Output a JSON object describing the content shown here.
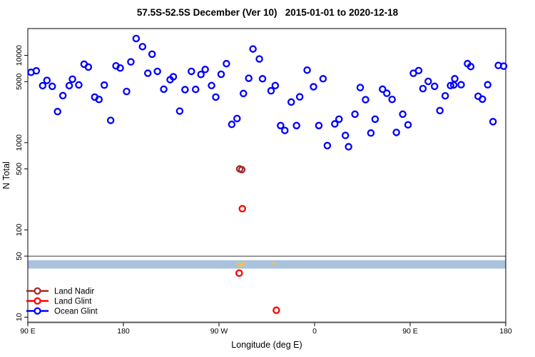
{
  "title": "57.5S-52.5S December (Ver 10)   2015-01-01 to 2020-12-18",
  "chart_data": {
    "type": "scatter",
    "title": "57.5S-52.5S December (Ver 10)   2015-01-01 to 2020-12-18",
    "xlabel": "Longitude (deg E)",
    "ylabel": "N Total",
    "x_axis": {
      "min": 90,
      "max": 540,
      "ticks": [
        {
          "value": 90,
          "label": "90 E"
        },
        {
          "value": 180,
          "label": "180"
        },
        {
          "value": 270,
          "label": "90 W"
        },
        {
          "value": 360,
          "label": "0"
        },
        {
          "value": 450,
          "label": "90 E"
        },
        {
          "value": 540,
          "label": "180"
        }
      ]
    },
    "y_axis": {
      "scale": "log10",
      "min": 8.8,
      "max": 20300,
      "ticks": [
        {
          "value": 10000,
          "label": "10000"
        },
        {
          "value": 5000,
          "label": "5000"
        },
        {
          "value": 1000,
          "label": "1000"
        },
        {
          "value": 500,
          "label": "500"
        },
        {
          "value": 100,
          "label": "100"
        },
        {
          "value": 50,
          "label": "50"
        },
        {
          "value": 10,
          "label": "10"
        }
      ]
    },
    "reference_line": {
      "y": 50,
      "color": "#808080"
    },
    "reference_band": {
      "y_min": 36,
      "y_max": 45,
      "color": "#A9C2DE"
    },
    "stray_marks": {
      "color": "#E3C565",
      "points": [
        [
          288.5,
          41
        ],
        [
          290,
          38.5
        ],
        [
          292,
          40
        ],
        [
          293.5,
          41.5
        ],
        [
          322,
          41
        ]
      ]
    },
    "legend": {
      "position": "bottom-left",
      "items": [
        "Land Nadir",
        "Land Glint",
        "Ocean Glint"
      ]
    },
    "series": [
      {
        "name": "Land Nadir",
        "color": "#A52A2A",
        "points": [
          [
            289.5,
            500
          ],
          [
            291.5,
            490
          ]
        ]
      },
      {
        "name": "Land Glint",
        "color": "#FF0000",
        "points": [
          [
            292,
            175
          ],
          [
            289,
            32
          ],
          [
            324,
            12
          ]
        ]
      },
      {
        "name": "Ocean Glint",
        "color": "#0000FF",
        "points": [
          [
            93,
            6400
          ],
          [
            98,
            6660
          ],
          [
            104,
            4500
          ],
          [
            108,
            5170
          ],
          [
            113,
            4420
          ],
          [
            118,
            2270
          ],
          [
            123,
            3460
          ],
          [
            129,
            4500
          ],
          [
            132,
            5340
          ],
          [
            138,
            4590
          ],
          [
            143,
            7930
          ],
          [
            147,
            7350
          ],
          [
            153,
            3330
          ],
          [
            157,
            3130
          ],
          [
            162,
            4570
          ],
          [
            168,
            1800
          ],
          [
            173,
            7590
          ],
          [
            177,
            7170
          ],
          [
            183,
            3860
          ],
          [
            187,
            8430
          ],
          [
            192,
            15600
          ],
          [
            198,
            12600
          ],
          [
            203,
            6250
          ],
          [
            207,
            10330
          ],
          [
            212,
            6560
          ],
          [
            218,
            4100
          ],
          [
            224,
            5270
          ],
          [
            227,
            5690
          ],
          [
            233,
            2300
          ],
          [
            238,
            4050
          ],
          [
            244,
            6560
          ],
          [
            248,
            4080
          ],
          [
            253,
            6050
          ],
          [
            257,
            6900
          ],
          [
            263,
            4510
          ],
          [
            267,
            3330
          ],
          [
            272,
            6080
          ],
          [
            277,
            8040
          ],
          [
            282,
            1620
          ],
          [
            287,
            1890
          ],
          [
            293,
            3660
          ],
          [
            298,
            5470
          ],
          [
            302,
            11850
          ],
          [
            308,
            9100
          ],
          [
            311,
            5400
          ],
          [
            319,
            3930
          ],
          [
            323,
            4510
          ],
          [
            328,
            1570
          ],
          [
            332,
            1380
          ],
          [
            338,
            2920
          ],
          [
            343,
            1570
          ],
          [
            346,
            3350
          ],
          [
            353,
            6780
          ],
          [
            359,
            4370
          ],
          [
            364,
            1570
          ],
          [
            368,
            5400
          ],
          [
            372,
            926
          ],
          [
            379,
            1640
          ],
          [
            383,
            1860
          ],
          [
            389,
            1210
          ],
          [
            392,
            897
          ],
          [
            398,
            2120
          ],
          [
            403,
            4280
          ],
          [
            408,
            3110
          ],
          [
            413,
            1290
          ],
          [
            417,
            1860
          ],
          [
            424,
            4100
          ],
          [
            428,
            3680
          ],
          [
            433,
            3130
          ],
          [
            437,
            1310
          ],
          [
            443,
            2120
          ],
          [
            448,
            1600
          ],
          [
            453,
            6240
          ],
          [
            458,
            6700
          ],
          [
            462,
            4160
          ],
          [
            467,
            5040
          ],
          [
            473,
            4420
          ],
          [
            478,
            2330
          ],
          [
            483,
            3440
          ],
          [
            488,
            4510
          ],
          [
            491,
            4580
          ],
          [
            492,
            5400
          ],
          [
            498,
            4610
          ],
          [
            504,
            8040
          ],
          [
            507,
            7450
          ],
          [
            514,
            3400
          ],
          [
            518,
            3150
          ],
          [
            523,
            4610
          ],
          [
            528,
            1740
          ],
          [
            533,
            7670
          ],
          [
            538,
            7530
          ]
        ]
      }
    ]
  }
}
